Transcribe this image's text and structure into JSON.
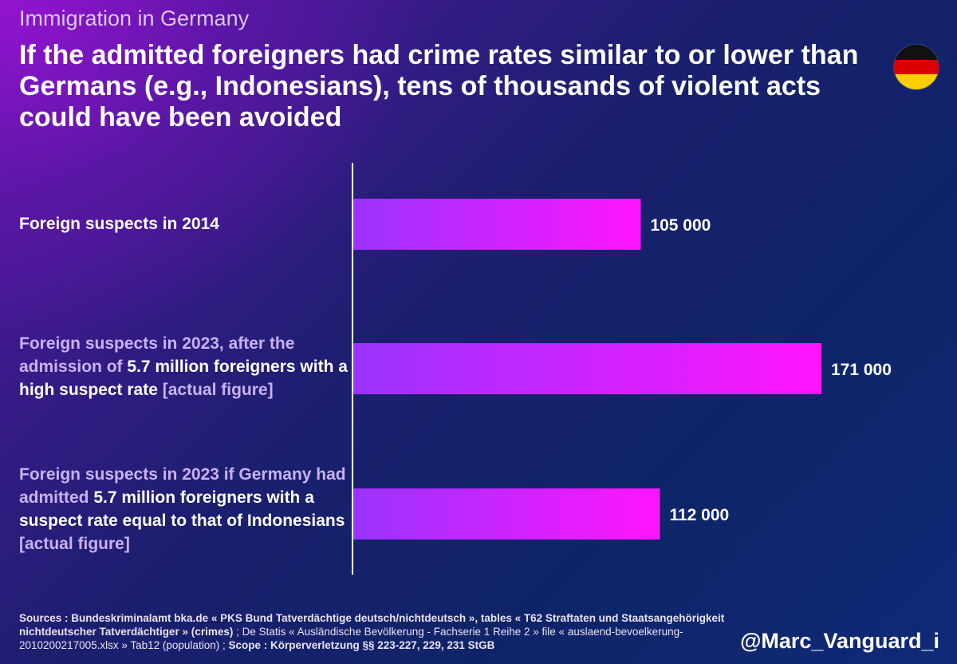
{
  "header": {
    "supertitle": "Immigration in Germany",
    "title": "If the admitted foreigners had crime rates similar to or lower than Germans (e.g., Indonesians), tens of thousands of violent acts could have been avoided"
  },
  "flag": {
    "name": "germany-flag",
    "colors": [
      "#111111",
      "#dd0000",
      "#ffce00"
    ]
  },
  "labels": {
    "row1": {
      "text": "Foreign suspects in 2014"
    },
    "row2": {
      "part1": "Foreign suspects in 2023, after the admission of ",
      "part2": "5.7 million foreigners with a high suspect rate",
      "part3": " [actual figure]"
    },
    "row3": {
      "part1": "Foreign suspects in 2023 if Germany had admitted ",
      "part2": "5.7 million foreigners with a suspect rate equal to that of Indonesians",
      "part3": " [actual figure]"
    }
  },
  "chart_data": {
    "type": "bar",
    "orientation": "horizontal",
    "categories": [
      "Foreign suspects in 2014",
      "Foreign suspects in 2023, after the admission of 5.7 million foreigners with a high suspect rate [actual figure]",
      "Foreign suspects in 2023 if Germany had admitted 5.7 million foreigners with a suspect rate equal to that of Indonesians [actual figure]"
    ],
    "values": [
      105000,
      171000,
      112000
    ],
    "value_labels": [
      "105 000",
      "171 000",
      "112 000"
    ],
    "xlim": [
      0,
      171000
    ],
    "bar_gradient": [
      "#9a33ff",
      "#ff14ff"
    ],
    "grid": false,
    "legend": "none"
  },
  "footer": {
    "sources_bold_1": "Sources : Bundeskriminalamt bka.de « PKS Bund Tatverdächtige deutsch/nichtdeutsch », tables « T62 Straftaten und Staatsangehörigkeit nichtdeutscher Tatverdächtiger » (crimes)",
    "sources_plain": " ; De Statis « Ausländische Bevölkerung - Fachserie 1 Reihe 2 » file « auslaend-bevoelkerung-2010200217005.xlsx » Tab12 (population) ; ",
    "sources_bold_2": "Scope : Körperverletzung §§ 223-227, 229, 231 StGB",
    "handle": "@Marc_Vanguard_i"
  }
}
